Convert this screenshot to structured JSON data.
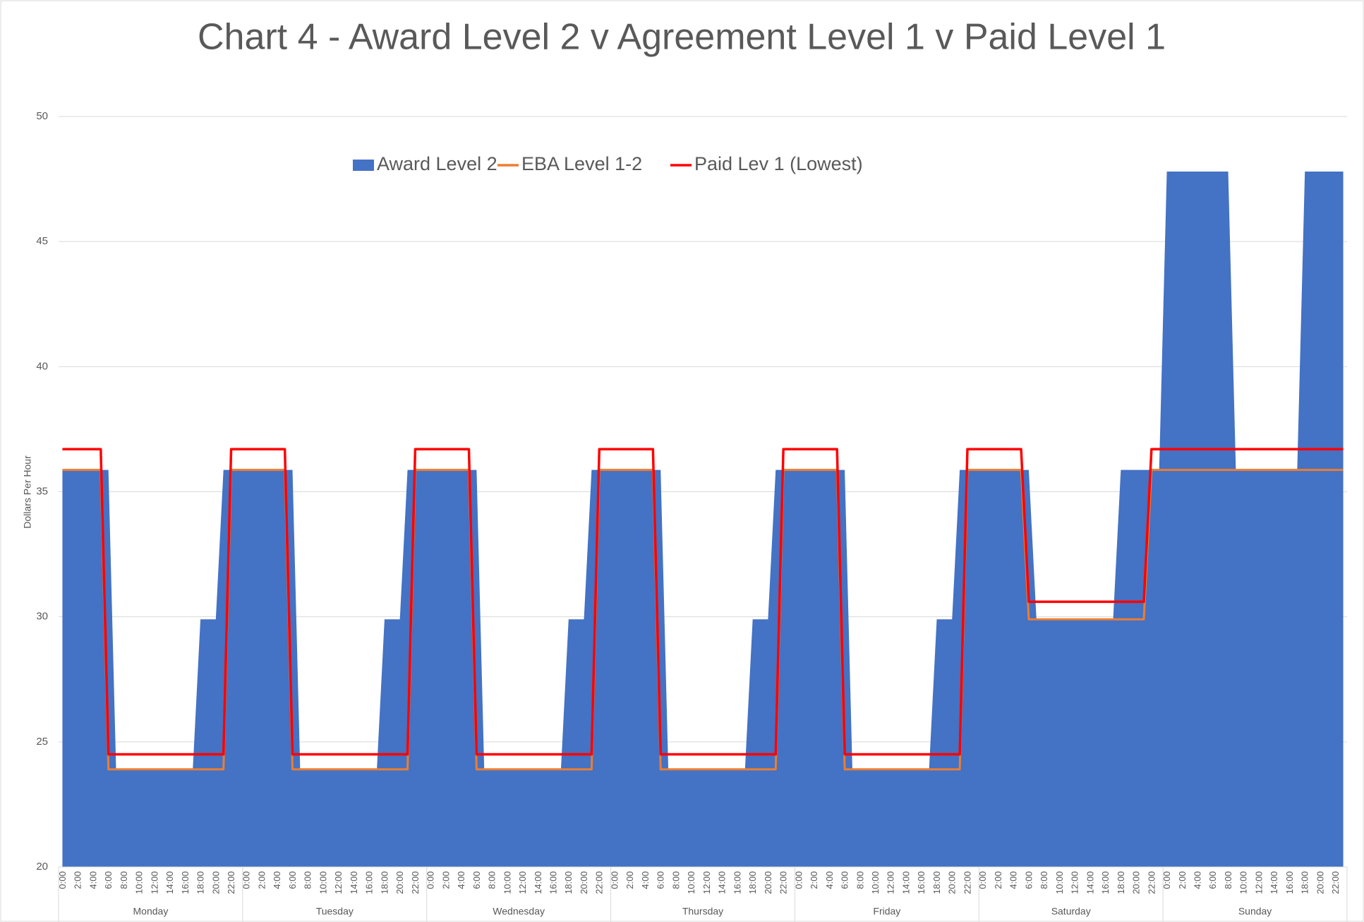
{
  "chart_data": {
    "type": "line",
    "title": "Chart 4 - Award Level 2 v Agreement Level 1 v Paid Level 1",
    "y_label": "Dollars Per Hour",
    "legend": "top",
    "grid": true,
    "ylim": [
      20,
      50
    ],
    "yticks": [
      20,
      25,
      30,
      35,
      40,
      45,
      50
    ],
    "groups": [
      "Monday",
      "Tuesday",
      "Wednesday",
      "Thursday",
      "Friday",
      "Saturday",
      "Sunday"
    ],
    "categories": [
      "0:00",
      null,
      "2:00",
      null,
      "4:00",
      null,
      "6:00",
      null,
      "8:00",
      null,
      "10:00",
      null,
      "12:00",
      null,
      "14:00",
      null,
      "16:00",
      null,
      "18:00",
      null,
      "20:00",
      null,
      "22:00",
      null,
      "0:00",
      null,
      "2:00",
      null,
      "4:00",
      null,
      "6:00",
      null,
      "8:00",
      null,
      "10:00",
      null,
      "12:00",
      null,
      "14:00",
      null,
      "16:00",
      null,
      "18:00",
      null,
      "20:00",
      null,
      "22:00",
      null,
      "0:00",
      null,
      "2:00",
      null,
      "4:00",
      null,
      "6:00",
      null,
      "8:00",
      null,
      "10:00",
      null,
      "12:00",
      null,
      "14:00",
      null,
      "16:00",
      null,
      "18:00",
      null,
      "20:00",
      null,
      "22:00",
      null,
      "0:00",
      null,
      "2:00",
      null,
      "4:00",
      null,
      "6:00",
      null,
      "8:00",
      null,
      "10:00",
      null,
      "12:00",
      null,
      "14:00",
      null,
      "16:00",
      null,
      "18:00",
      null,
      "20:00",
      null,
      "22:00",
      null,
      "0:00",
      null,
      "2:00",
      null,
      "4:00",
      null,
      "6:00",
      null,
      "8:00",
      null,
      "10:00",
      null,
      "12:00",
      null,
      "14:00",
      null,
      "16:00",
      null,
      "18:00",
      null,
      "20:00",
      null,
      "22:00",
      null,
      "0:00",
      null,
      "2:00",
      null,
      "4:00",
      null,
      "6:00",
      null,
      "8:00",
      null,
      "10:00",
      null,
      "12:00",
      null,
      "14:00",
      null,
      "16:00",
      null,
      "18:00",
      null,
      "20:00",
      null,
      "22:00",
      null,
      "0:00",
      null,
      "2:00",
      null,
      "4:00",
      null,
      "6:00",
      null,
      "8:00",
      null,
      "10:00",
      null,
      "12:00",
      null,
      "14:00",
      null,
      "16:00",
      null,
      "18:00",
      null,
      "20:00",
      null,
      "22:00",
      null
    ],
    "series": [
      {
        "name": "Award Level 2",
        "type": "area",
        "color": "#4472c4",
        "values": [
          35.87,
          35.87,
          35.87,
          35.87,
          35.87,
          35.87,
          35.87,
          23.9,
          23.9,
          23.9,
          23.9,
          23.9,
          23.9,
          23.9,
          23.9,
          23.9,
          23.9,
          23.9,
          29.9,
          29.9,
          29.9,
          35.87,
          35.87,
          35.87,
          35.87,
          35.87,
          35.87,
          35.87,
          35.87,
          35.87,
          35.87,
          23.9,
          23.9,
          23.9,
          23.9,
          23.9,
          23.9,
          23.9,
          23.9,
          23.9,
          23.9,
          23.9,
          29.9,
          29.9,
          29.9,
          35.87,
          35.87,
          35.87,
          35.87,
          35.87,
          35.87,
          35.87,
          35.87,
          35.87,
          35.87,
          23.9,
          23.9,
          23.9,
          23.9,
          23.9,
          23.9,
          23.9,
          23.9,
          23.9,
          23.9,
          23.9,
          29.9,
          29.9,
          29.9,
          35.87,
          35.87,
          35.87,
          35.87,
          35.87,
          35.87,
          35.87,
          35.87,
          35.87,
          35.87,
          23.9,
          23.9,
          23.9,
          23.9,
          23.9,
          23.9,
          23.9,
          23.9,
          23.9,
          23.9,
          23.9,
          29.9,
          29.9,
          29.9,
          35.87,
          35.87,
          35.87,
          35.87,
          35.87,
          35.87,
          35.87,
          35.87,
          35.87,
          35.87,
          23.9,
          23.9,
          23.9,
          23.9,
          23.9,
          23.9,
          23.9,
          23.9,
          23.9,
          23.9,
          23.9,
          29.9,
          29.9,
          29.9,
          35.87,
          35.87,
          35.87,
          35.87,
          35.87,
          35.87,
          35.87,
          35.87,
          35.87,
          35.87,
          29.9,
          29.9,
          29.9,
          29.9,
          29.9,
          29.9,
          29.9,
          29.9,
          29.9,
          29.9,
          29.9,
          35.87,
          35.87,
          35.87,
          35.87,
          35.87,
          35.87,
          47.8,
          47.8,
          47.8,
          47.8,
          47.8,
          47.8,
          47.8,
          47.8,
          47.8,
          35.87,
          35.87,
          35.87,
          35.87,
          35.87,
          35.87,
          35.87,
          35.87,
          35.87,
          47.8,
          47.8,
          47.8,
          47.8,
          47.8,
          47.8
        ]
      },
      {
        "name": "EBA Level 1-2",
        "type": "line",
        "color": "#ed7d31",
        "values": [
          35.87,
          35.87,
          35.87,
          35.87,
          35.87,
          35.87,
          23.9,
          23.9,
          23.9,
          23.9,
          23.9,
          23.9,
          23.9,
          23.9,
          23.9,
          23.9,
          23.9,
          23.9,
          23.9,
          23.9,
          23.9,
          23.9,
          35.87,
          35.87,
          35.87,
          35.87,
          35.87,
          35.87,
          35.87,
          35.87,
          23.9,
          23.9,
          23.9,
          23.9,
          23.9,
          23.9,
          23.9,
          23.9,
          23.9,
          23.9,
          23.9,
          23.9,
          23.9,
          23.9,
          23.9,
          23.9,
          35.87,
          35.87,
          35.87,
          35.87,
          35.87,
          35.87,
          35.87,
          35.87,
          23.9,
          23.9,
          23.9,
          23.9,
          23.9,
          23.9,
          23.9,
          23.9,
          23.9,
          23.9,
          23.9,
          23.9,
          23.9,
          23.9,
          23.9,
          23.9,
          35.87,
          35.87,
          35.87,
          35.87,
          35.87,
          35.87,
          35.87,
          35.87,
          23.9,
          23.9,
          23.9,
          23.9,
          23.9,
          23.9,
          23.9,
          23.9,
          23.9,
          23.9,
          23.9,
          23.9,
          23.9,
          23.9,
          23.9,
          23.9,
          35.87,
          35.87,
          35.87,
          35.87,
          35.87,
          35.87,
          35.87,
          35.87,
          23.9,
          23.9,
          23.9,
          23.9,
          23.9,
          23.9,
          23.9,
          23.9,
          23.9,
          23.9,
          23.9,
          23.9,
          23.9,
          23.9,
          23.9,
          23.9,
          35.87,
          35.87,
          35.87,
          35.87,
          35.87,
          35.87,
          35.87,
          35.87,
          29.9,
          29.9,
          29.9,
          29.9,
          29.9,
          29.9,
          29.9,
          29.9,
          29.9,
          29.9,
          29.9,
          29.9,
          29.9,
          29.9,
          29.9,
          29.9,
          35.87,
          35.87,
          35.87,
          35.87,
          35.87,
          35.87,
          35.87,
          35.87,
          35.87,
          35.87,
          35.87,
          35.87,
          35.87,
          35.87,
          35.87,
          35.87,
          35.87,
          35.87,
          35.87,
          35.87,
          35.87,
          35.87,
          35.87,
          35.87,
          35.87,
          35.87
        ]
      },
      {
        "name": "Paid Lev 1 (Lowest)",
        "type": "line",
        "color": "#ff0000",
        "values": [
          36.7,
          36.7,
          36.7,
          36.7,
          36.7,
          36.7,
          24.5,
          24.5,
          24.5,
          24.5,
          24.5,
          24.5,
          24.5,
          24.5,
          24.5,
          24.5,
          24.5,
          24.5,
          24.5,
          24.5,
          24.5,
          24.5,
          36.7,
          36.7,
          36.7,
          36.7,
          36.7,
          36.7,
          36.7,
          36.7,
          24.5,
          24.5,
          24.5,
          24.5,
          24.5,
          24.5,
          24.5,
          24.5,
          24.5,
          24.5,
          24.5,
          24.5,
          24.5,
          24.5,
          24.5,
          24.5,
          36.7,
          36.7,
          36.7,
          36.7,
          36.7,
          36.7,
          36.7,
          36.7,
          24.5,
          24.5,
          24.5,
          24.5,
          24.5,
          24.5,
          24.5,
          24.5,
          24.5,
          24.5,
          24.5,
          24.5,
          24.5,
          24.5,
          24.5,
          24.5,
          36.7,
          36.7,
          36.7,
          36.7,
          36.7,
          36.7,
          36.7,
          36.7,
          24.5,
          24.5,
          24.5,
          24.5,
          24.5,
          24.5,
          24.5,
          24.5,
          24.5,
          24.5,
          24.5,
          24.5,
          24.5,
          24.5,
          24.5,
          24.5,
          36.7,
          36.7,
          36.7,
          36.7,
          36.7,
          36.7,
          36.7,
          36.7,
          24.5,
          24.5,
          24.5,
          24.5,
          24.5,
          24.5,
          24.5,
          24.5,
          24.5,
          24.5,
          24.5,
          24.5,
          24.5,
          24.5,
          24.5,
          24.5,
          36.7,
          36.7,
          36.7,
          36.7,
          36.7,
          36.7,
          36.7,
          36.7,
          30.6,
          30.6,
          30.6,
          30.6,
          30.6,
          30.6,
          30.6,
          30.6,
          30.6,
          30.6,
          30.6,
          30.6,
          30.6,
          30.6,
          30.6,
          30.6,
          36.7,
          36.7,
          36.7,
          36.7,
          36.7,
          36.7,
          36.7,
          36.7,
          36.7,
          36.7,
          36.7,
          36.7,
          36.7,
          36.7,
          36.7,
          36.7,
          36.7,
          36.7,
          36.7,
          36.7,
          36.7,
          36.7,
          36.7,
          36.7,
          36.7,
          36.7
        ]
      }
    ]
  }
}
